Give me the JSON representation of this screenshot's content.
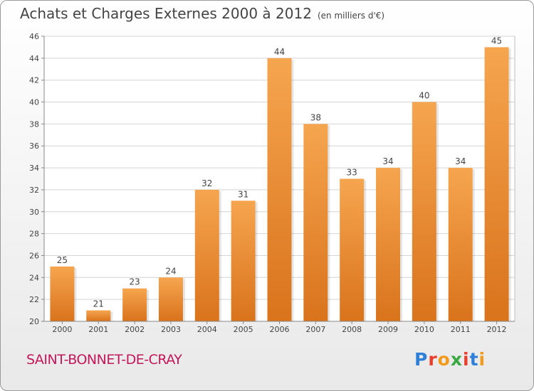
{
  "header": {
    "title": "Achats et Charges Externes 2000 à 2012",
    "unit": "(en milliers d'€)"
  },
  "footer": {
    "commune": "SAINT-BONNET-DE-CRAY",
    "brand": "Proxiti",
    "brand_colors": [
      "#2e7fd8",
      "#e8402e",
      "#f29a1c",
      "#3aa843",
      "#e8402e",
      "#2e7fd8",
      "#f29a1c"
    ]
  },
  "colors": {
    "bar_top": "#f6a54f",
    "bar_bottom": "#d9731c",
    "grid": "#d4d4d4",
    "axis_text": "#444444"
  },
  "chart_data": {
    "type": "bar",
    "title": "Achats et Charges Externes 2000 à 2012",
    "subtitle": "(en milliers d'€)",
    "categories": [
      "2000",
      "2001",
      "2002",
      "2003",
      "2004",
      "2005",
      "2006",
      "2007",
      "2008",
      "2009",
      "2010",
      "2011",
      "2012"
    ],
    "values": [
      25,
      21,
      23,
      24,
      32,
      31,
      44,
      38,
      33,
      34,
      40,
      34,
      45
    ],
    "ylim": [
      20,
      46
    ],
    "yticks": [
      20,
      22,
      24,
      26,
      28,
      30,
      32,
      34,
      36,
      38,
      40,
      42,
      44,
      46
    ],
    "grid": true,
    "data_labels": true
  }
}
